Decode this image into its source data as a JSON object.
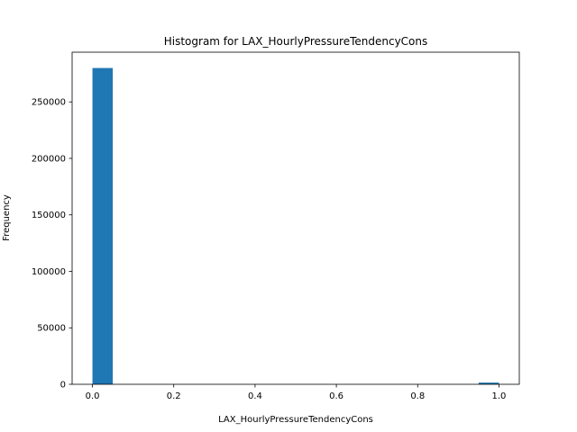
{
  "chart_data": {
    "type": "bar",
    "title": "Histogram for LAX_HourlyPressureTendencyCons",
    "xlabel": "LAX_HourlyPressureTendencyCons",
    "ylabel": "Frequency",
    "bar_color": "#1f77b4",
    "xlim": [
      -0.05,
      1.05
    ],
    "ylim": [
      0,
      294000
    ],
    "xticks": [
      0.0,
      0.2,
      0.4,
      0.6,
      0.8,
      1.0
    ],
    "xtick_labels": [
      "0.0",
      "0.2",
      "0.4",
      "0.6",
      "0.8",
      "1.0"
    ],
    "yticks": [
      0,
      50000,
      100000,
      150000,
      200000,
      250000
    ],
    "ytick_labels": [
      "0",
      "50000",
      "100000",
      "150000",
      "200000",
      "250000"
    ],
    "bins": [
      {
        "x0": 0.0,
        "x1": 0.05,
        "count": 280000
      },
      {
        "x0": 0.95,
        "x1": 1.0,
        "count": 1500
      }
    ],
    "grid": false
  }
}
